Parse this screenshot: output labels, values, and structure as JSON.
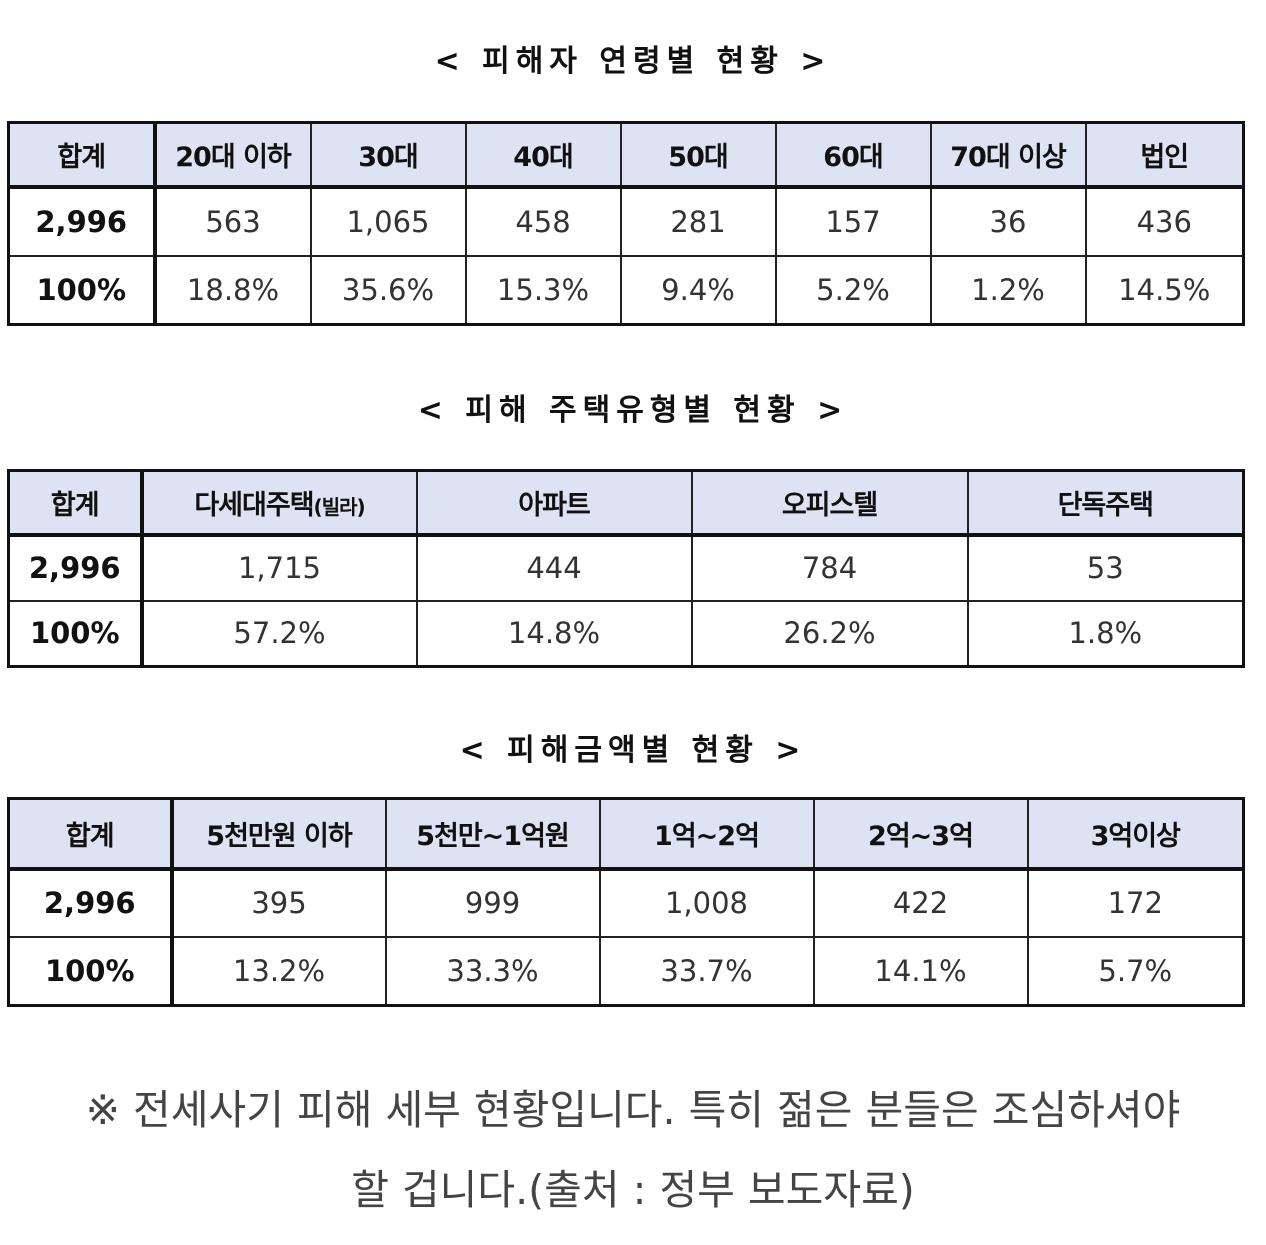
{
  "age": {
    "title": "< 피해자 연령별 현황 >",
    "headers": [
      "합계",
      "20대 이하",
      "30대",
      "40대",
      "50대",
      "60대",
      "70대 이상",
      "법인"
    ],
    "counts": [
      "2,996",
      "563",
      "1,065",
      "458",
      "281",
      "157",
      "36",
      "436"
    ],
    "percents": [
      "100%",
      "18.8%",
      "35.6%",
      "15.3%",
      "9.4%",
      "5.2%",
      "1.2%",
      "14.5%"
    ]
  },
  "housing": {
    "title": "< 피해 주택유형별 현황 >",
    "headers": [
      "합계",
      "다세대주택",
      "아파트",
      "오피스텔",
      "단독주택"
    ],
    "header_note": "(빌라)",
    "counts": [
      "2,996",
      "1,715",
      "444",
      "784",
      "53"
    ],
    "percents": [
      "100%",
      "57.2%",
      "14.8%",
      "26.2%",
      "1.8%"
    ]
  },
  "amount": {
    "title": "< 피해금액별 현황 >",
    "headers": [
      "합계",
      "5천만원 이하",
      "5천만~1억원",
      "1억~2억",
      "2억~3억",
      "3억이상"
    ],
    "counts": [
      "2,996",
      "395",
      "999",
      "1,008",
      "422",
      "172"
    ],
    "percents": [
      "100%",
      "13.2%",
      "33.3%",
      "33.7%",
      "14.1%",
      "5.7%"
    ]
  },
  "note": {
    "line1": "※ 전세사기 피해 세부 현황입니다. 특히 젊은 분들은 조심하셔야",
    "line2": "할 겁니다.(출처 : 정부 보도자료)"
  }
}
